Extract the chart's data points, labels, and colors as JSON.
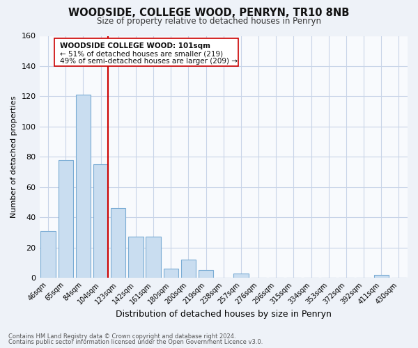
{
  "title": "WOODSIDE, COLLEGE WOOD, PENRYN, TR10 8NB",
  "subtitle": "Size of property relative to detached houses in Penryn",
  "xlabel": "Distribution of detached houses by size in Penryn",
  "ylabel": "Number of detached properties",
  "bar_labels": [
    "46sqm",
    "65sqm",
    "84sqm",
    "104sqm",
    "123sqm",
    "142sqm",
    "161sqm",
    "180sqm",
    "200sqm",
    "219sqm",
    "238sqm",
    "257sqm",
    "276sqm",
    "296sqm",
    "315sqm",
    "334sqm",
    "353sqm",
    "372sqm",
    "392sqm",
    "411sqm",
    "430sqm"
  ],
  "bar_values": [
    31,
    78,
    121,
    75,
    46,
    27,
    27,
    6,
    12,
    5,
    0,
    3,
    0,
    0,
    0,
    0,
    0,
    0,
    0,
    2,
    0
  ],
  "bar_color": "#c9ddf0",
  "bar_edge_color": "#7aacd4",
  "vline_index": 3,
  "vline_color": "#cc0000",
  "ylim": [
    0,
    160
  ],
  "yticks": [
    0,
    20,
    40,
    60,
    80,
    100,
    120,
    140,
    160
  ],
  "annotation_title": "WOODSIDE COLLEGE WOOD: 101sqm",
  "annotation_line1": "← 51% of detached houses are smaller (219)",
  "annotation_line2": "49% of semi-detached houses are larger (209) →",
  "footnote1": "Contains HM Land Registry data © Crown copyright and database right 2024.",
  "footnote2": "Contains public sector information licensed under the Open Government Licence v3.0.",
  "background_color": "#eef2f8",
  "plot_bg_color": "#f8fafd",
  "grid_color": "#c8d4e8"
}
